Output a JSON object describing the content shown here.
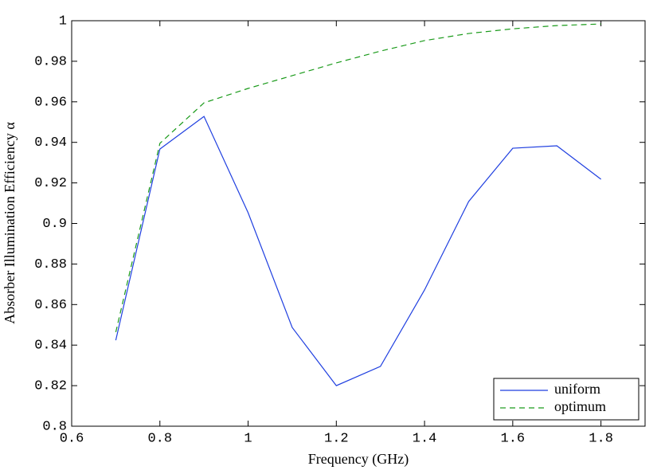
{
  "chart_data": {
    "type": "line",
    "x_label": "Frequency (GHz)",
    "y_label": "Absorber Illumination Efficiency α",
    "x": [
      0.7,
      0.8,
      0.9,
      1.0,
      1.1,
      1.2,
      1.3,
      1.4,
      1.5,
      1.6,
      1.7,
      1.8
    ],
    "series": [
      {
        "name": "uniform",
        "color": "#1f3fe0",
        "line_style": "solid",
        "values": [
          0.8424,
          0.9367,
          0.9528,
          0.9053,
          0.8487,
          0.82,
          0.8295,
          0.8672,
          0.9108,
          0.9371,
          0.9383,
          0.9218
        ]
      },
      {
        "name": "optimum",
        "color": "#1a9a1a",
        "line_style": "dashed",
        "values": [
          0.8464,
          0.9395,
          0.9595,
          0.9666,
          0.9729,
          0.9792,
          0.985,
          0.9902,
          0.9937,
          0.996,
          0.9976,
          0.9984
        ]
      }
    ],
    "xlim": [
      0.6,
      1.9
    ],
    "xticks": [
      0.6,
      0.8,
      1,
      1.2,
      1.4,
      1.6,
      1.8
    ],
    "ylim": [
      0.8,
      1
    ],
    "yticks": [
      0.8,
      0.82,
      0.84,
      0.86,
      0.88,
      0.9,
      0.92,
      0.94,
      0.96,
      0.98,
      1
    ],
    "grid": false,
    "legend": "lower right"
  }
}
